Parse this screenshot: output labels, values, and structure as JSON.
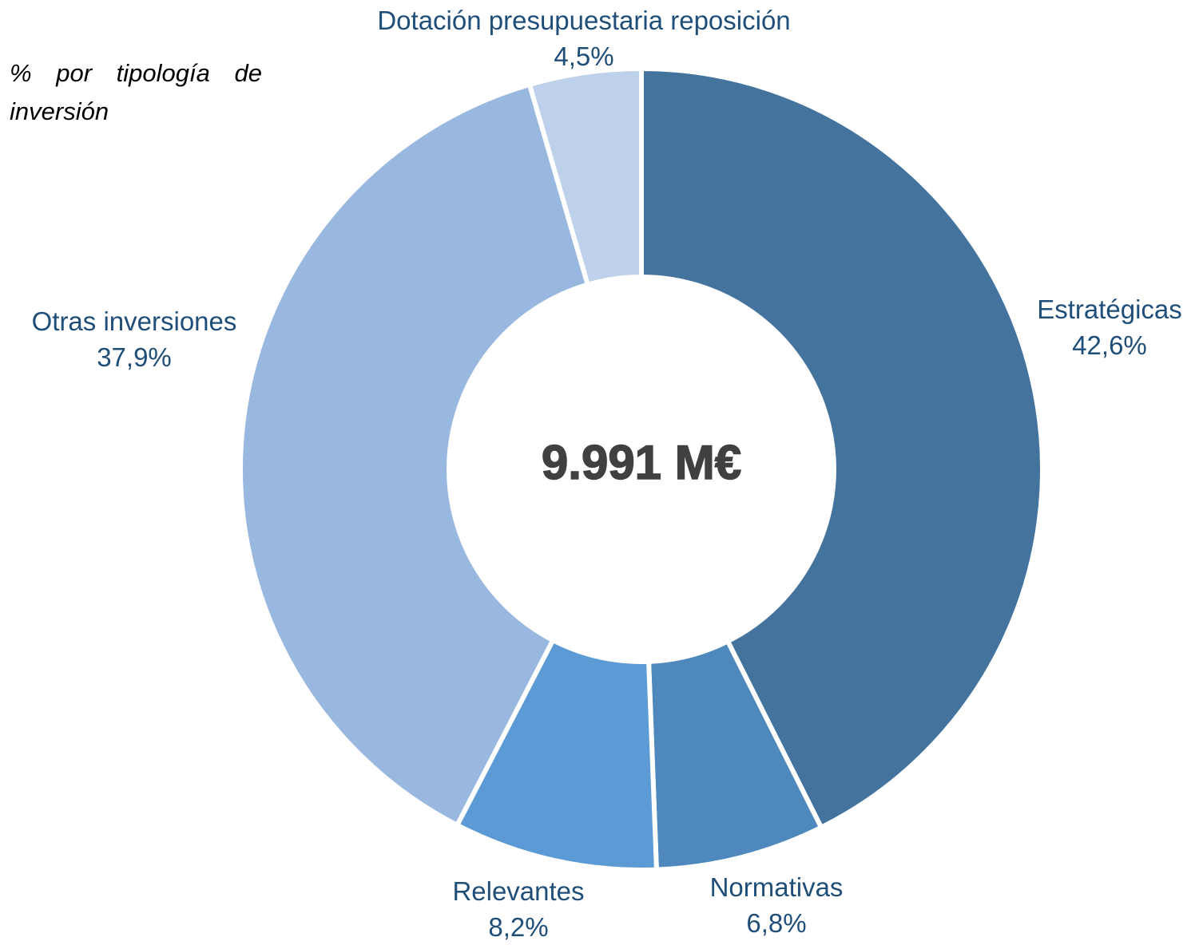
{
  "subtitle": "% por tipología de inversión",
  "chart_data": {
    "type": "pie",
    "variant": "donut",
    "title": "",
    "center_label": "9.991 M€",
    "label_color": "#1F4E79",
    "slices": [
      {
        "name": "Estratégicas",
        "label": "42,6%",
        "value": 42.6,
        "color": "#44749E"
      },
      {
        "name": "Normativas",
        "label": "6,8%",
        "value": 6.8,
        "color": "#4E88BC"
      },
      {
        "name": "Relevantes",
        "label": "8,2%",
        "value": 8.2,
        "color": "#5B9AD5"
      },
      {
        "name": "Otras inversiones",
        "label": "37,9%",
        "value": 37.9,
        "color": "#99B8DF"
      },
      {
        "name": "Dotación presupuestaria reposición",
        "label": "4,5%",
        "value": 4.5,
        "color": "#BDD1EA"
      }
    ]
  }
}
